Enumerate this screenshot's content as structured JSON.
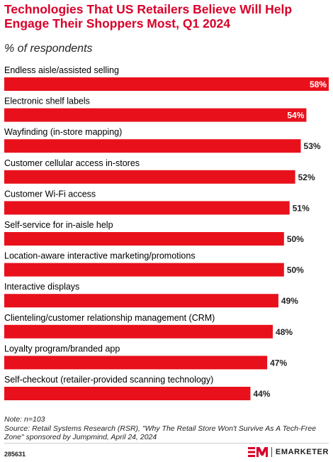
{
  "header": {
    "title": "Technologies That US Retailers Believe Will Help Engage Their Shoppers Most, Q1 2024",
    "subtitle": "% of respondents"
  },
  "chart_data": {
    "type": "bar",
    "orientation": "horizontal",
    "categories": [
      "Endless aisle/assisted selling",
      "Electronic shelf labels",
      "Wayfinding (in-store mapping)",
      "Customer cellular access in-stores",
      "Customer Wi-Fi access",
      "Self-service for in-aisle help",
      "Location-aware interactive marketing/promotions",
      "Interactive displays",
      "Clienteling/customer relationship management (CRM)",
      "Loyalty program/branded app",
      "Self-checkout (retailer-provided scanning technology)"
    ],
    "values": [
      58,
      54,
      53,
      52,
      51,
      50,
      50,
      49,
      48,
      47,
      44
    ],
    "labels": [
      "58%",
      "54%",
      "53%",
      "52%",
      "51%",
      "50%",
      "50%",
      "49%",
      "48%",
      "47%",
      "44%"
    ],
    "xlim": [
      0,
      58
    ],
    "bar_color": "#e8111b",
    "label_inside_color": "#ffffff",
    "label_outside_color": "#222222"
  },
  "footer": {
    "note": "Note: n=103",
    "source": "Source: Retail Systems Research (RSR), \"Why The Retail Store Won't Survive As A Tech-Free Zone\" sponsored by Jumpmind, April 24, 2024",
    "chart_id": "285631",
    "brand_name": "EMARKETER",
    "brand_color": "#d8002a"
  }
}
